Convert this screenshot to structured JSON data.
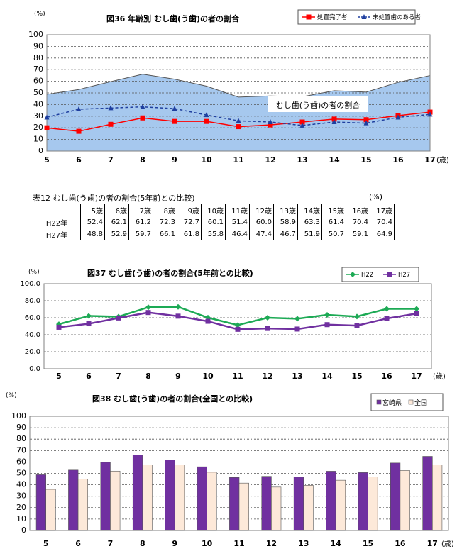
{
  "chart_data": [
    {
      "type": "area+line",
      "title": "図36 年齢別 むし歯(う歯)の者の割合",
      "yunit": "(%)",
      "xunit": "(歳)",
      "categories": [
        "5",
        "6",
        "7",
        "8",
        "9",
        "10",
        "11",
        "12",
        "13",
        "14",
        "15",
        "16",
        "17"
      ],
      "ylim": [
        0,
        100
      ],
      "yticks": [
        "0",
        "10",
        "20",
        "30",
        "40",
        "50",
        "60",
        "70",
        "80",
        "90",
        "100"
      ],
      "grid": true,
      "legend": "top-right",
      "area": {
        "label": "むし歯(う歯)の者の割合",
        "color": "#a6c8ee",
        "values": [
          48.8,
          52.9,
          59.7,
          66.1,
          61.8,
          55.8,
          46.4,
          47.4,
          46.7,
          51.9,
          50.7,
          59.1,
          64.9
        ]
      },
      "series": [
        {
          "name": "処置完了者",
          "color": "#ff0000",
          "marker": "square",
          "values": [
            20,
            17,
            23,
            28.5,
            25.5,
            25.5,
            21,
            22.5,
            25,
            27.5,
            27,
            30.5,
            33.5
          ]
        },
        {
          "name": "未処置歯のある者",
          "color": "#1f3f9f",
          "marker": "triangle",
          "dashed": true,
          "values": [
            29,
            36,
            37,
            38,
            36.5,
            31,
            26,
            25,
            22,
            25,
            24,
            29,
            31.5
          ]
        }
      ]
    },
    {
      "type": "line",
      "title": "図37 むし歯(う歯)の者の割合(5年前との比較)",
      "yunit": "(%)",
      "xunit": "(歳)",
      "categories": [
        "5",
        "6",
        "7",
        "8",
        "9",
        "10",
        "11",
        "12",
        "13",
        "14",
        "15",
        "16",
        "17"
      ],
      "ylim": [
        0,
        100
      ],
      "yticks": [
        "0.0",
        "20.0",
        "40.0",
        "60.0",
        "80.0",
        "100.0"
      ],
      "grid": true,
      "legend": "top-right",
      "series": [
        {
          "name": "H22",
          "color": "#1daa55",
          "marker": "diamond",
          "values": [
            52.4,
            62.1,
            61.2,
            72.3,
            72.7,
            60.1,
            51.4,
            60.0,
            58.9,
            63.3,
            61.4,
            70.4,
            70.4
          ]
        },
        {
          "name": "H27",
          "color": "#7030a0",
          "marker": "square",
          "values": [
            48.8,
            52.9,
            59.7,
            66.1,
            61.8,
            55.8,
            46.4,
            47.4,
            46.7,
            51.9,
            50.7,
            59.1,
            64.9
          ]
        }
      ]
    },
    {
      "type": "bar",
      "title": "図38 むし歯(う歯)の者の割合(全国との比較)",
      "yunit": "(%)",
      "xunit": "(歳)",
      "categories": [
        "5",
        "6",
        "7",
        "8",
        "9",
        "10",
        "11",
        "12",
        "13",
        "14",
        "15",
        "16",
        "17"
      ],
      "ylim": [
        0,
        100
      ],
      "yticks": [
        "0",
        "10",
        "20",
        "30",
        "40",
        "50",
        "60",
        "70",
        "80",
        "90",
        "100"
      ],
      "grid": true,
      "legend": "top-right",
      "series": [
        {
          "name": "宮崎県",
          "color": "#7030a0",
          "values": [
            48.8,
            52.9,
            59.7,
            66.1,
            61.8,
            55.8,
            46.4,
            47.4,
            46.7,
            51.9,
            50.7,
            59.1,
            64.9
          ]
        },
        {
          "name": "全国",
          "color": "#fde9d9",
          "values": [
            36,
            45,
            52,
            57.5,
            57.5,
            51,
            41.5,
            38,
            39.5,
            44,
            47,
            52.5,
            57.5
          ]
        }
      ]
    }
  ],
  "table": {
    "caption": "表12 むし歯(う歯)の者の割合(5年前との比較)",
    "unit": "(%)",
    "headers": [
      "",
      "5歳",
      "6歳",
      "7歳",
      "8歳",
      "9歳",
      "10歳",
      "11歳",
      "12歳",
      "13歳",
      "14歳",
      "15歳",
      "16歳",
      "17歳"
    ],
    "rows": [
      [
        "H22年",
        "52.4",
        "62.1",
        "61.2",
        "72.3",
        "72.7",
        "60.1",
        "51.4",
        "60.0",
        "58.9",
        "63.3",
        "61.4",
        "70.4",
        "70.4"
      ],
      [
        "H27年",
        "48.8",
        "52.9",
        "59.7",
        "66.1",
        "61.8",
        "55.8",
        "46.4",
        "47.4",
        "46.7",
        "51.9",
        "50.7",
        "59.1",
        "64.9"
      ]
    ]
  }
}
